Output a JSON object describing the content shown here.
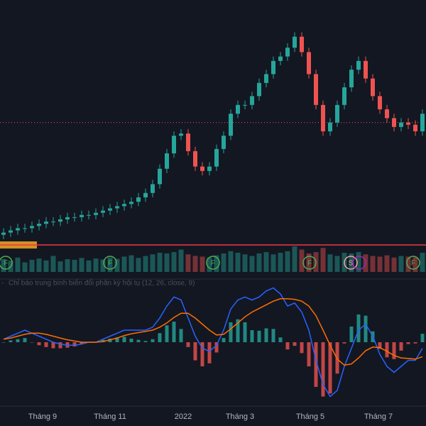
{
  "chart_data": {
    "type": "candlestick",
    "ylim": [
      0,
      100
    ],
    "up_color": "#26a69a",
    "down_color": "#ef5350",
    "last_price_line": 54,
    "open": [
      3,
      4,
      5,
      6,
      6,
      7,
      8,
      9,
      9,
      10,
      11,
      11,
      12,
      12,
      13,
      14,
      15,
      16,
      17,
      18,
      20,
      22,
      26,
      33,
      40,
      48,
      49,
      41,
      34,
      32,
      34,
      42,
      48,
      58,
      62,
      62,
      66,
      72,
      76,
      82,
      84,
      88,
      93,
      86,
      76,
      62,
      50,
      54,
      62,
      70,
      78,
      82,
      74,
      66,
      60,
      56,
      52,
      54,
      53,
      50
    ],
    "high": [
      6,
      7,
      8,
      8,
      9,
      10,
      11,
      11,
      12,
      13,
      13,
      14,
      14,
      15,
      16,
      17,
      18,
      19,
      20,
      22,
      24,
      28,
      35,
      42,
      50,
      51,
      51,
      43,
      36,
      36,
      44,
      50,
      60,
      64,
      64,
      68,
      74,
      78,
      84,
      86,
      90,
      95,
      95,
      88,
      78,
      64,
      56,
      64,
      72,
      80,
      84,
      84,
      76,
      68,
      62,
      58,
      56,
      56,
      55,
      60
    ],
    "low": [
      1,
      2,
      3,
      4,
      4,
      5,
      6,
      7,
      7,
      8,
      9,
      9,
      10,
      10,
      11,
      12,
      13,
      14,
      15,
      16,
      18,
      20,
      24,
      31,
      38,
      46,
      39,
      32,
      30,
      30,
      32,
      40,
      46,
      56,
      60,
      60,
      64,
      70,
      74,
      80,
      82,
      86,
      84,
      74,
      60,
      48,
      48,
      52,
      60,
      68,
      76,
      72,
      64,
      58,
      54,
      50,
      50,
      51,
      48,
      48
    ],
    "close": [
      4,
      5,
      6,
      6,
      7,
      8,
      9,
      9,
      10,
      11,
      11,
      12,
      12,
      13,
      14,
      15,
      16,
      17,
      18,
      20,
      22,
      26,
      33,
      40,
      48,
      49,
      41,
      34,
      32,
      34,
      42,
      48,
      58,
      62,
      62,
      66,
      72,
      76,
      82,
      84,
      88,
      93,
      86,
      76,
      62,
      50,
      54,
      62,
      70,
      78,
      82,
      74,
      66,
      60,
      56,
      52,
      54,
      53,
      50,
      58
    ],
    "volume": {
      "ylim": [
        0,
        100
      ],
      "values": [
        40,
        35,
        45,
        30,
        38,
        42,
        36,
        50,
        33,
        40,
        38,
        44,
        36,
        42,
        39,
        45,
        41,
        48,
        52,
        44,
        50,
        55,
        60,
        58,
        62,
        70,
        55,
        50,
        48,
        45,
        52,
        58,
        65,
        60,
        55,
        50,
        58,
        62,
        55,
        60,
        65,
        80,
        70,
        58,
        62,
        75,
        55,
        50,
        60,
        58,
        62,
        55,
        50,
        48,
        52,
        45,
        50,
        48,
        46,
        60
      ]
    },
    "markers": [
      "F",
      "F",
      "F",
      "F",
      "S",
      "F"
    ],
    "macd": {
      "title_prefix": "-",
      "title": "Chỉ báo trung bình biến đổi phân kỳ hội tụ (12, 26, close, 9)",
      "ylim": [
        -10,
        10
      ],
      "macd_line": {
        "color": "#2962ff",
        "values": [
          0.5,
          1,
          1.5,
          2,
          1.5,
          1,
          0.5,
          0,
          -0.3,
          -0.5,
          -0.5,
          -0.3,
          0,
          0,
          0.5,
          1,
          1.5,
          2,
          2,
          2,
          2,
          2.5,
          4,
          6,
          7.5,
          7,
          4,
          1,
          -1,
          -1.5,
          -0.5,
          2,
          5.5,
          7,
          7.5,
          7,
          7.5,
          8.5,
          9,
          8,
          6,
          6.5,
          5,
          2,
          -3,
          -7,
          -9,
          -8,
          -4,
          -1,
          2,
          3,
          1,
          -2,
          -4,
          -5,
          -4,
          -3,
          -3,
          -1
        ]
      },
      "signal_line": {
        "color": "#ff6d00",
        "values": [
          0.5,
          0.7,
          1,
          1.3,
          1.5,
          1.5,
          1.3,
          1,
          0.7,
          0.4,
          0.2,
          0,
          0,
          0,
          0.1,
          0.4,
          0.7,
          1.1,
          1.4,
          1.6,
          1.8,
          2,
          2.5,
          3.2,
          4.1,
          4.8,
          4.8,
          4,
          3,
          2,
          1.2,
          1.3,
          2.2,
          3.2,
          4.2,
          5,
          5.6,
          6.2,
          6.8,
          7.2,
          7.2,
          7.1,
          6.8,
          6,
          4.4,
          2,
          -0.5,
          -2.8,
          -3.8,
          -3.6,
          -2.6,
          -1.4,
          -0.8,
          -0.9,
          -1.5,
          -2.2,
          -2.6,
          -2.7,
          -2.8,
          -2.4
        ]
      },
      "histogram": {
        "pos_color": "#26a69a",
        "neg_color": "#ef5350",
        "values": [
          0,
          0.3,
          0.5,
          0.7,
          0,
          -0.5,
          -0.8,
          -1,
          -1,
          -0.9,
          -0.7,
          -0.3,
          0,
          0,
          0.4,
          0.6,
          0.8,
          0.9,
          0.6,
          0.4,
          0.2,
          0.5,
          1.5,
          2.8,
          3.4,
          2.2,
          -0.8,
          -3,
          -4,
          -3.5,
          -1.7,
          0.7,
          3.3,
          3.8,
          3.3,
          2,
          1.9,
          2.3,
          2.2,
          0.8,
          -1.2,
          -0.6,
          -1.8,
          -4,
          -7.4,
          -9,
          -8.5,
          -5.2,
          -0.2,
          2.6,
          4.6,
          4.4,
          1.8,
          -1.1,
          -2.5,
          -2.8,
          -1.4,
          -0.3,
          -0.2,
          1.4
        ]
      }
    },
    "x_labels": [
      "Tháng 9",
      "Tháng 11",
      "2022",
      "Tháng 3",
      "Tháng 5",
      "Tháng 7"
    ]
  }
}
